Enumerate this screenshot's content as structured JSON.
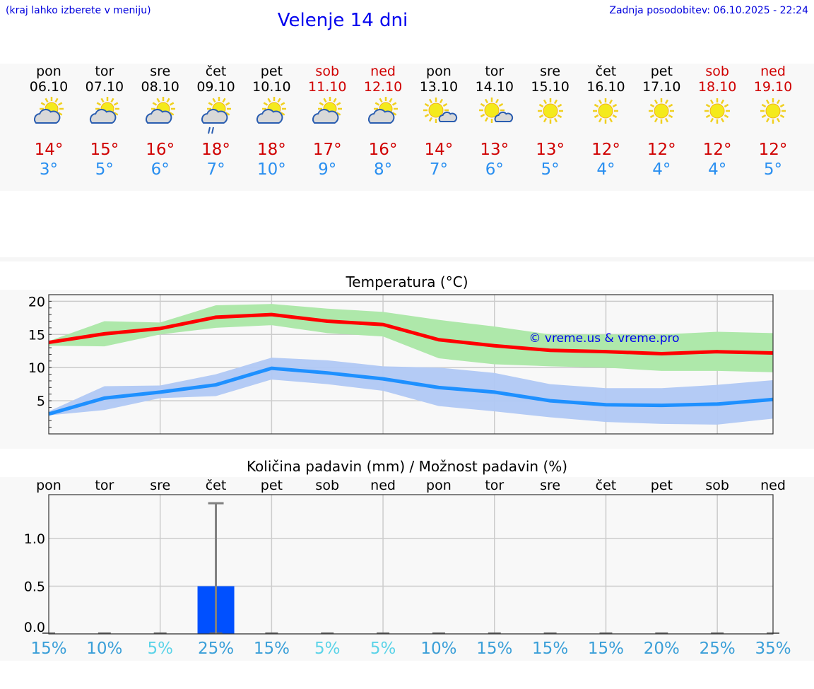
{
  "header": {
    "hint": "(kraj lahko izberete v meniju)",
    "title": "Velenje 14 dni",
    "updated": "Zadnja posodobitev: 06.10.2025 - 22:24"
  },
  "colors": {
    "max": "#ff0000",
    "min": "#1e90ff",
    "max_band": "#aee8aa",
    "min_band": "#b0c8f4",
    "bar": "#0050ff",
    "err": "#808080",
    "weekend": "#d00000",
    "pct": "#3a9fd8",
    "pct_low": "#5bd3e8"
  },
  "days": [
    {
      "name": "pon",
      "date": "06.10",
      "icon": "partly-cloudy-icon",
      "max": "14°",
      "min": "3°",
      "weekend": false,
      "pct": "15%"
    },
    {
      "name": "tor",
      "date": "07.10",
      "icon": "partly-cloudy-icon",
      "max": "15°",
      "min": "5°",
      "weekend": false,
      "pct": "10%"
    },
    {
      "name": "sre",
      "date": "08.10",
      "icon": "partly-cloudy-icon",
      "max": "16°",
      "min": "6°",
      "weekend": false,
      "pct": "5%"
    },
    {
      "name": "čet",
      "date": "09.10",
      "icon": "partly-cloudy-rain-icon",
      "max": "18°",
      "min": "7°",
      "weekend": false,
      "pct": "25%"
    },
    {
      "name": "pet",
      "date": "10.10",
      "icon": "partly-cloudy-icon",
      "max": "18°",
      "min": "10°",
      "weekend": false,
      "pct": "15%"
    },
    {
      "name": "sob",
      "date": "11.10",
      "icon": "partly-cloudy-icon",
      "max": "17°",
      "min": "9°",
      "weekend": true,
      "pct": "5%"
    },
    {
      "name": "ned",
      "date": "12.10",
      "icon": "partly-cloudy-icon",
      "max": "16°",
      "min": "8°",
      "weekend": true,
      "pct": "5%"
    },
    {
      "name": "pon",
      "date": "13.10",
      "icon": "sun-small-cloud-icon",
      "max": "14°",
      "min": "7°",
      "weekend": false,
      "pct": "10%"
    },
    {
      "name": "tor",
      "date": "14.10",
      "icon": "sun-small-cloud-icon",
      "max": "13°",
      "min": "6°",
      "weekend": false,
      "pct": "15%"
    },
    {
      "name": "sre",
      "date": "15.10",
      "icon": "sun-icon",
      "max": "13°",
      "min": "5°",
      "weekend": false,
      "pct": "15%"
    },
    {
      "name": "čet",
      "date": "16.10",
      "icon": "sun-icon",
      "max": "12°",
      "min": "4°",
      "weekend": false,
      "pct": "15%"
    },
    {
      "name": "pet",
      "date": "17.10",
      "icon": "sun-icon",
      "max": "12°",
      "min": "4°",
      "weekend": false,
      "pct": "20%"
    },
    {
      "name": "sob",
      "date": "18.10",
      "icon": "sun-icon",
      "max": "12°",
      "min": "4°",
      "weekend": true,
      "pct": "25%"
    },
    {
      "name": "ned",
      "date": "19.10",
      "icon": "sun-icon",
      "max": "12°",
      "min": "5°",
      "weekend": true,
      "pct": "35%"
    }
  ],
  "chart_data": [
    {
      "type": "line",
      "title": "Temperatura (°C)",
      "watermark": "© vreme.us & vreme.pro",
      "ylim": [
        0,
        21
      ],
      "yticks": [
        "5",
        "10",
        "15",
        "20"
      ],
      "ytick_values": [
        5,
        10,
        15,
        20
      ],
      "grid": true,
      "series": [
        {
          "name": "max",
          "values": [
            13.8,
            15.1,
            15.9,
            17.6,
            18,
            17,
            16.5,
            14.2,
            13.3,
            12.6,
            12.4,
            12.1,
            12.4,
            12.2
          ],
          "band_upper": [
            14,
            17,
            16.8,
            19.4,
            19.6,
            18.9,
            18.4,
            17.2,
            16.2,
            15,
            15,
            15,
            15.4,
            15.2
          ],
          "band_lower": [
            13.3,
            13.2,
            15,
            16,
            16.4,
            15.2,
            14.7,
            11.4,
            10.5,
            10.2,
            10,
            9.5,
            9.5,
            9.3
          ]
        },
        {
          "name": "min",
          "values": [
            3,
            5.4,
            6.3,
            7.4,
            9.9,
            9.2,
            8.3,
            7,
            6.3,
            5,
            4.4,
            4.3,
            4.5,
            5.2
          ],
          "band_upper": [
            3.4,
            7.2,
            7.3,
            9,
            11.5,
            11.1,
            10.2,
            10,
            9.2,
            7.5,
            6.9,
            6.9,
            7.4,
            8.1
          ],
          "band_lower": [
            2.8,
            3.6,
            5.4,
            5.7,
            8.2,
            7.5,
            6.5,
            4.2,
            3.4,
            2.5,
            1.8,
            1.5,
            1.4,
            2.3
          ]
        }
      ]
    },
    {
      "type": "bar",
      "title": "Količina padavin (mm) / Možnost padavin (%)",
      "ylim": [
        0,
        1.46
      ],
      "yticks": [
        "0.0",
        "0.5",
        "1.0"
      ],
      "ytick_values": [
        0,
        0.5,
        1.0
      ],
      "values": [
        0,
        0,
        0,
        0.5,
        0,
        0,
        0,
        0,
        0,
        0,
        0,
        0,
        0,
        0
      ],
      "err_upper": [
        0,
        0,
        0,
        1.37,
        0,
        0,
        0,
        0,
        0,
        0,
        0,
        0,
        0,
        0
      ],
      "grid": true
    }
  ]
}
